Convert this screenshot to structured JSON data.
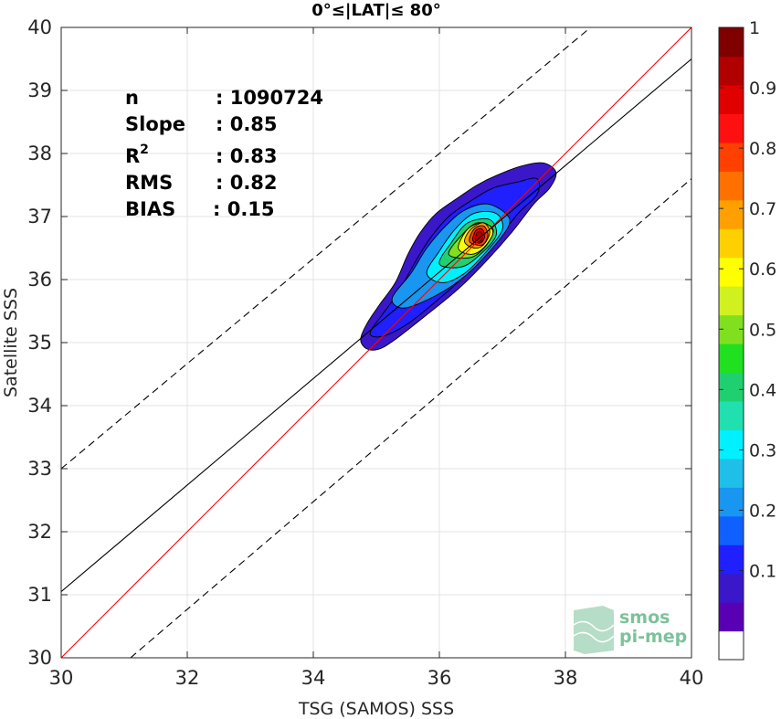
{
  "chart_data": {
    "type": "heatmap",
    "title": "0°≤|LAT|≤ 80°",
    "xlabel": "TSG (SAMOS) SSS",
    "ylabel": "Satellite SSS",
    "xlim": [
      30,
      40
    ],
    "ylim": [
      30,
      40
    ],
    "xticks": [
      "30",
      "32",
      "34",
      "36",
      "38",
      "40"
    ],
    "yticks": [
      "30",
      "31",
      "32",
      "33",
      "34",
      "35",
      "36",
      "37",
      "38",
      "39",
      "40"
    ],
    "grid": true,
    "stats": [
      {
        "label": "n",
        "value": ": 1090724"
      },
      {
        "label": "Slope",
        "value": ": 0.85"
      },
      {
        "label": "R",
        "sup": "2",
        "value": ": 0.83"
      },
      {
        "label": "RMS",
        "value": ": 0.82"
      },
      {
        "label": "BIAS",
        "value": ": 0.15"
      }
    ],
    "lines": [
      {
        "name": "1:1",
        "color": "#ff0000",
        "style": "solid",
        "points": [
          [
            30,
            30
          ],
          [
            40,
            40
          ]
        ]
      },
      {
        "name": "fit",
        "color": "#000000",
        "style": "solid",
        "points": [
          [
            30,
            31.05
          ],
          [
            40,
            39.5
          ]
        ]
      },
      {
        "name": "upper",
        "color": "#000000",
        "style": "dashed",
        "points": [
          [
            30,
            33.0
          ],
          [
            38.4,
            40
          ]
        ]
      },
      {
        "name": "lower",
        "color": "#000000",
        "style": "dashed",
        "points": [
          [
            31.1,
            30
          ],
          [
            40,
            37.6
          ]
        ]
      }
    ],
    "density_peak": [
      36.6,
      36.7
    ],
    "contour_levels": [
      {
        "level": 0.05,
        "poly": [
          [
            34.75,
            35.05
          ],
          [
            34.85,
            35.3
          ],
          [
            35.05,
            35.6
          ],
          [
            35.3,
            35.95
          ],
          [
            35.5,
            36.4
          ],
          [
            35.7,
            36.75
          ],
          [
            35.95,
            37.05
          ],
          [
            36.3,
            37.3
          ],
          [
            36.6,
            37.5
          ],
          [
            36.9,
            37.65
          ],
          [
            37.3,
            37.8
          ],
          [
            37.65,
            37.85
          ],
          [
            37.85,
            37.7
          ],
          [
            37.75,
            37.45
          ],
          [
            37.5,
            37.2
          ],
          [
            37.15,
            36.75
          ],
          [
            36.75,
            36.3
          ],
          [
            36.3,
            35.85
          ],
          [
            35.75,
            35.4
          ],
          [
            35.3,
            35.05
          ],
          [
            35.05,
            34.9
          ],
          [
            34.85,
            34.9
          ]
        ]
      },
      {
        "level": 0.1,
        "poly": [
          [
            34.9,
            35.15
          ],
          [
            35.1,
            35.45
          ],
          [
            35.35,
            35.8
          ],
          [
            35.6,
            36.25
          ],
          [
            35.85,
            36.65
          ],
          [
            36.15,
            37.0
          ],
          [
            36.5,
            37.25
          ],
          [
            36.85,
            37.45
          ],
          [
            37.25,
            37.55
          ],
          [
            37.55,
            37.6
          ],
          [
            37.55,
            37.35
          ],
          [
            37.25,
            37.05
          ],
          [
            36.9,
            36.6
          ],
          [
            36.5,
            36.15
          ],
          [
            36.0,
            35.7
          ],
          [
            35.5,
            35.3
          ],
          [
            35.1,
            35.1
          ]
        ]
      },
      {
        "level": 0.2,
        "poly": [
          [
            35.25,
            35.7
          ],
          [
            35.55,
            36.1
          ],
          [
            35.8,
            36.5
          ],
          [
            36.1,
            36.85
          ],
          [
            36.4,
            37.1
          ],
          [
            36.75,
            37.2
          ],
          [
            37.05,
            37.05
          ],
          [
            37.1,
            36.85
          ],
          [
            36.8,
            36.45
          ],
          [
            36.4,
            36.05
          ],
          [
            35.95,
            35.75
          ],
          [
            35.45,
            35.55
          ]
        ]
      },
      {
        "level": 0.3,
        "poly": [
          [
            35.8,
            36.1
          ],
          [
            36.0,
            36.45
          ],
          [
            36.25,
            36.8
          ],
          [
            36.55,
            37.05
          ],
          [
            36.9,
            37.05
          ],
          [
            37.0,
            36.8
          ],
          [
            36.75,
            36.45
          ],
          [
            36.4,
            36.1
          ],
          [
            36.05,
            35.95
          ]
        ]
      },
      {
        "level": 0.4,
        "poly": [
          [
            36.0,
            36.25
          ],
          [
            36.2,
            36.6
          ],
          [
            36.45,
            36.9
          ],
          [
            36.8,
            36.95
          ],
          [
            36.9,
            36.7
          ],
          [
            36.65,
            36.4
          ],
          [
            36.35,
            36.2
          ]
        ]
      },
      {
        "level": 0.5,
        "poly": [
          [
            36.15,
            36.4
          ],
          [
            36.35,
            36.7
          ],
          [
            36.6,
            36.9
          ],
          [
            36.85,
            36.8
          ],
          [
            36.75,
            36.55
          ],
          [
            36.5,
            36.35
          ]
        ]
      },
      {
        "level": 0.6,
        "poly": [
          [
            36.3,
            36.5
          ],
          [
            36.45,
            36.8
          ],
          [
            36.7,
            36.9
          ],
          [
            36.85,
            36.75
          ],
          [
            36.7,
            36.5
          ],
          [
            36.5,
            36.4
          ]
        ]
      },
      {
        "level": 0.7,
        "poly": [
          [
            36.4,
            36.6
          ],
          [
            36.5,
            36.8
          ],
          [
            36.7,
            36.9
          ],
          [
            36.8,
            36.75
          ],
          [
            36.7,
            36.55
          ],
          [
            36.55,
            36.5
          ]
        ]
      },
      {
        "level": 0.8,
        "poly": [
          [
            36.48,
            36.6
          ],
          [
            36.55,
            36.8
          ],
          [
            36.7,
            36.85
          ],
          [
            36.77,
            36.7
          ],
          [
            36.68,
            36.55
          ]
        ]
      },
      {
        "level": 0.9,
        "poly": [
          [
            36.53,
            36.62
          ],
          [
            36.58,
            36.78
          ],
          [
            36.68,
            36.8
          ],
          [
            36.72,
            36.68
          ],
          [
            36.65,
            36.58
          ]
        ]
      },
      {
        "level": 0.97,
        "poly": [
          [
            36.57,
            36.64
          ],
          [
            36.6,
            36.74
          ],
          [
            36.66,
            36.76
          ],
          [
            36.68,
            36.66
          ],
          [
            36.63,
            36.6
          ]
        ]
      }
    ],
    "colorbar": {
      "ticks": [
        "0.1",
        "0.2",
        "0.3",
        "0.4",
        "0.5",
        "0.6",
        "0.7",
        "0.8",
        "0.9",
        "1"
      ],
      "colors": [
        "#ffffff",
        "#5a00b4",
        "#3a17c8",
        "#1f1fff",
        "#1060ff",
        "#1896f0",
        "#1fbfea",
        "#00f0ff",
        "#20e0b0",
        "#20d070",
        "#20e020",
        "#80e020",
        "#d0f020",
        "#ffff00",
        "#ffd000",
        "#ffa000",
        "#ff7000",
        "#ff4000",
        "#ff1010",
        "#e00000",
        "#b00000",
        "#800000"
      ]
    }
  },
  "watermark": {
    "line1": "smos",
    "line2": "pi-mep",
    "color": "#7cc29a"
  }
}
